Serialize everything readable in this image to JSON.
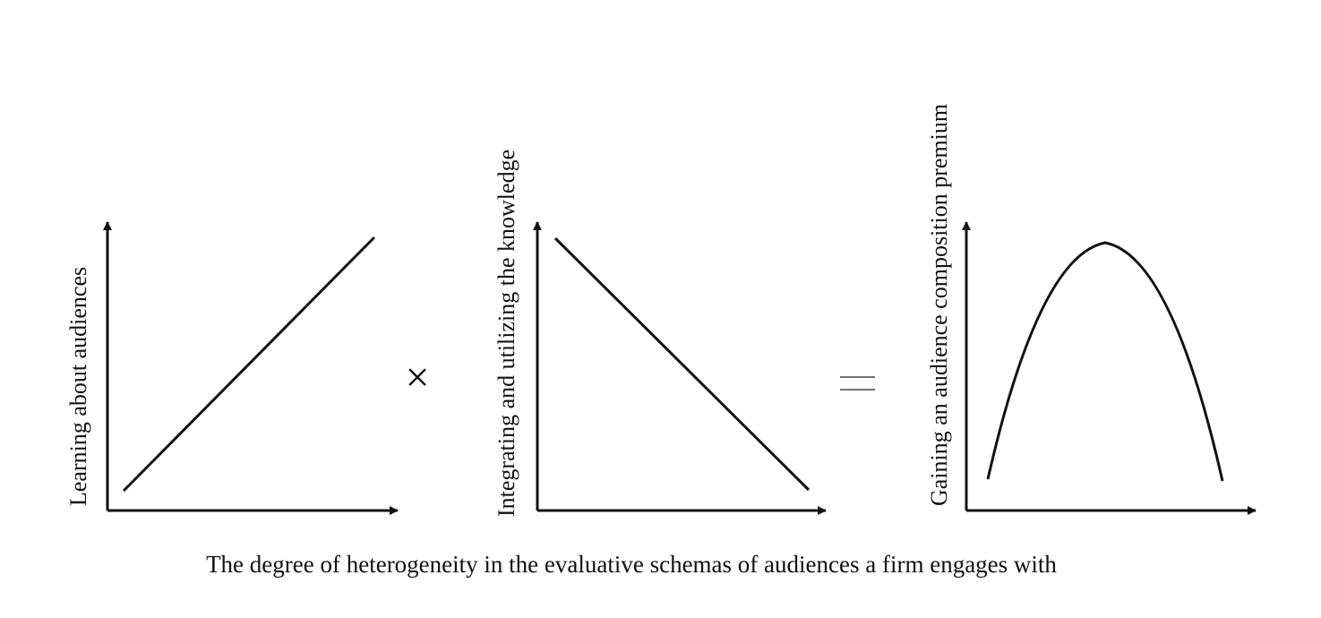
{
  "figure": {
    "operators": {
      "multiply": "×",
      "equals": "="
    },
    "panels": [
      {
        "ylabel": "Learning about audiences",
        "trend": "increasing-linear"
      },
      {
        "ylabel": "Integrating and utilizing the knowledge",
        "trend": "decreasing-linear"
      },
      {
        "ylabel": "Gaining an audience composition premium",
        "trend": "inverted-u"
      }
    ],
    "xlabel": "The degree of heterogeneity in the evaluative schemas of audiences a firm engages with",
    "colors": {
      "ink": "#111111",
      "background": "#ffffff"
    }
  }
}
